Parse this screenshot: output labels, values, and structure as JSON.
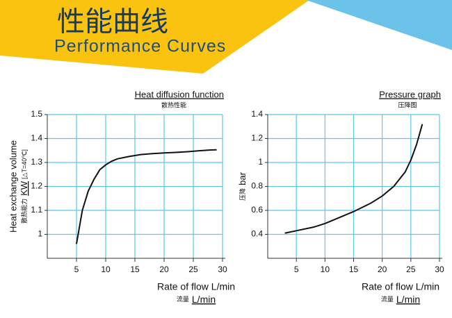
{
  "header": {
    "title_cn": "性能曲线",
    "title_en": "Performance Curves"
  },
  "chart_data": [
    {
      "type": "line",
      "title": "Heat diffusion function",
      "subtitle": "散热性能",
      "x_label": "Rate of flow L/min",
      "x_label_cn": "流量",
      "x_unit": "L/min",
      "y_label": "Heat exchange volume",
      "y_label_cn": "散热能力",
      "y_unit": "KW",
      "y_note": "[△T=40℃]",
      "x": [
        5,
        6,
        7,
        8,
        9,
        10,
        11,
        12,
        14,
        16,
        18,
        20,
        22,
        24,
        26,
        28,
        29
      ],
      "values": [
        0.96,
        1.1,
        1.18,
        1.23,
        1.27,
        1.29,
        1.305,
        1.315,
        1.325,
        1.333,
        1.337,
        1.34,
        1.342,
        1.345,
        1.349,
        1.352,
        1.353
      ],
      "color": "#111111",
      "grid_color": "#5bc8e6",
      "xlim": [
        0,
        30
      ],
      "xticks": [
        5,
        10,
        15,
        20,
        25,
        30
      ],
      "ylim": [
        0.9,
        1.5
      ],
      "yticks": [
        1.0,
        1.1,
        1.2,
        1.3,
        1.4,
        1.5
      ],
      "grid": true
    },
    {
      "type": "line",
      "title": "Pressure graph",
      "subtitle": "压降图",
      "x_label": "Rate of flow L/min",
      "x_label_cn": "流量",
      "x_unit": "L/min",
      "y_label_cn": "压降",
      "y_unit": "bar",
      "x": [
        3,
        5,
        8,
        10,
        12,
        15,
        18,
        20,
        22,
        24,
        25,
        26,
        27
      ],
      "values": [
        0.41,
        0.43,
        0.46,
        0.49,
        0.53,
        0.59,
        0.66,
        0.72,
        0.8,
        0.92,
        1.02,
        1.15,
        1.32
      ],
      "color": "#111111",
      "grid_color": "#5bc8e6",
      "xlim": [
        0,
        30
      ],
      "xticks": [
        5,
        10,
        15,
        20,
        25,
        30
      ],
      "ylim": [
        0.2,
        1.4
      ],
      "yticks": [
        0.4,
        0.6,
        0.8,
        1.0,
        1.2,
        1.4
      ],
      "grid": true
    }
  ]
}
